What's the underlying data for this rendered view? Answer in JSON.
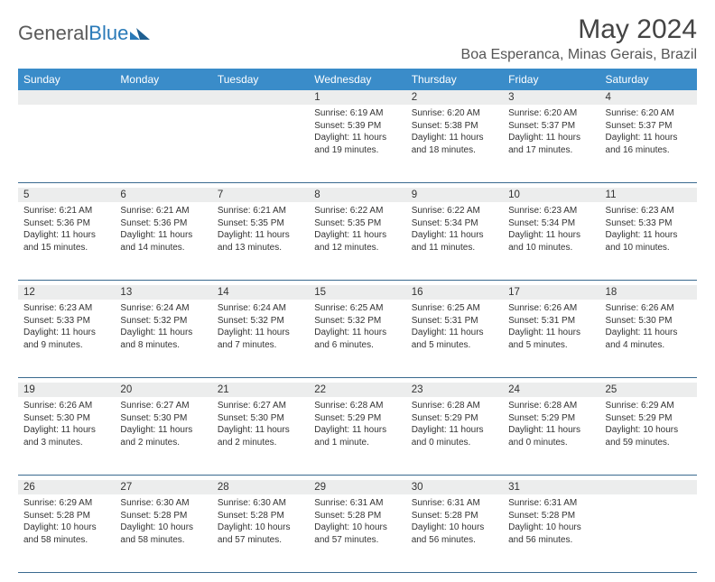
{
  "brand": {
    "part1": "General",
    "part2": "Blue"
  },
  "title": "May 2024",
  "location": "Boa Esperanca, Minas Gerais, Brazil",
  "header_bg": "#3a8cc9",
  "daynum_bg": "#eceded",
  "rule_color": "#3a6a8f",
  "weekdays": [
    "Sunday",
    "Monday",
    "Tuesday",
    "Wednesday",
    "Thursday",
    "Friday",
    "Saturday"
  ],
  "weeks": [
    [
      null,
      null,
      null,
      {
        "n": "1",
        "sr": "6:19 AM",
        "ss": "5:39 PM",
        "dl": "11 hours and 19 minutes."
      },
      {
        "n": "2",
        "sr": "6:20 AM",
        "ss": "5:38 PM",
        "dl": "11 hours and 18 minutes."
      },
      {
        "n": "3",
        "sr": "6:20 AM",
        "ss": "5:37 PM",
        "dl": "11 hours and 17 minutes."
      },
      {
        "n": "4",
        "sr": "6:20 AM",
        "ss": "5:37 PM",
        "dl": "11 hours and 16 minutes."
      }
    ],
    [
      {
        "n": "5",
        "sr": "6:21 AM",
        "ss": "5:36 PM",
        "dl": "11 hours and 15 minutes."
      },
      {
        "n": "6",
        "sr": "6:21 AM",
        "ss": "5:36 PM",
        "dl": "11 hours and 14 minutes."
      },
      {
        "n": "7",
        "sr": "6:21 AM",
        "ss": "5:35 PM",
        "dl": "11 hours and 13 minutes."
      },
      {
        "n": "8",
        "sr": "6:22 AM",
        "ss": "5:35 PM",
        "dl": "11 hours and 12 minutes."
      },
      {
        "n": "9",
        "sr": "6:22 AM",
        "ss": "5:34 PM",
        "dl": "11 hours and 11 minutes."
      },
      {
        "n": "10",
        "sr": "6:23 AM",
        "ss": "5:34 PM",
        "dl": "11 hours and 10 minutes."
      },
      {
        "n": "11",
        "sr": "6:23 AM",
        "ss": "5:33 PM",
        "dl": "11 hours and 10 minutes."
      }
    ],
    [
      {
        "n": "12",
        "sr": "6:23 AM",
        "ss": "5:33 PM",
        "dl": "11 hours and 9 minutes."
      },
      {
        "n": "13",
        "sr": "6:24 AM",
        "ss": "5:32 PM",
        "dl": "11 hours and 8 minutes."
      },
      {
        "n": "14",
        "sr": "6:24 AM",
        "ss": "5:32 PM",
        "dl": "11 hours and 7 minutes."
      },
      {
        "n": "15",
        "sr": "6:25 AM",
        "ss": "5:32 PM",
        "dl": "11 hours and 6 minutes."
      },
      {
        "n": "16",
        "sr": "6:25 AM",
        "ss": "5:31 PM",
        "dl": "11 hours and 5 minutes."
      },
      {
        "n": "17",
        "sr": "6:26 AM",
        "ss": "5:31 PM",
        "dl": "11 hours and 5 minutes."
      },
      {
        "n": "18",
        "sr": "6:26 AM",
        "ss": "5:30 PM",
        "dl": "11 hours and 4 minutes."
      }
    ],
    [
      {
        "n": "19",
        "sr": "6:26 AM",
        "ss": "5:30 PM",
        "dl": "11 hours and 3 minutes."
      },
      {
        "n": "20",
        "sr": "6:27 AM",
        "ss": "5:30 PM",
        "dl": "11 hours and 2 minutes."
      },
      {
        "n": "21",
        "sr": "6:27 AM",
        "ss": "5:30 PM",
        "dl": "11 hours and 2 minutes."
      },
      {
        "n": "22",
        "sr": "6:28 AM",
        "ss": "5:29 PM",
        "dl": "11 hours and 1 minute."
      },
      {
        "n": "23",
        "sr": "6:28 AM",
        "ss": "5:29 PM",
        "dl": "11 hours and 0 minutes."
      },
      {
        "n": "24",
        "sr": "6:28 AM",
        "ss": "5:29 PM",
        "dl": "11 hours and 0 minutes."
      },
      {
        "n": "25",
        "sr": "6:29 AM",
        "ss": "5:29 PM",
        "dl": "10 hours and 59 minutes."
      }
    ],
    [
      {
        "n": "26",
        "sr": "6:29 AM",
        "ss": "5:28 PM",
        "dl": "10 hours and 58 minutes."
      },
      {
        "n": "27",
        "sr": "6:30 AM",
        "ss": "5:28 PM",
        "dl": "10 hours and 58 minutes."
      },
      {
        "n": "28",
        "sr": "6:30 AM",
        "ss": "5:28 PM",
        "dl": "10 hours and 57 minutes."
      },
      {
        "n": "29",
        "sr": "6:31 AM",
        "ss": "5:28 PM",
        "dl": "10 hours and 57 minutes."
      },
      {
        "n": "30",
        "sr": "6:31 AM",
        "ss": "5:28 PM",
        "dl": "10 hours and 56 minutes."
      },
      {
        "n": "31",
        "sr": "6:31 AM",
        "ss": "5:28 PM",
        "dl": "10 hours and 56 minutes."
      },
      null
    ]
  ],
  "labels": {
    "sunrise": "Sunrise:",
    "sunset": "Sunset:",
    "daylight": "Daylight:"
  }
}
